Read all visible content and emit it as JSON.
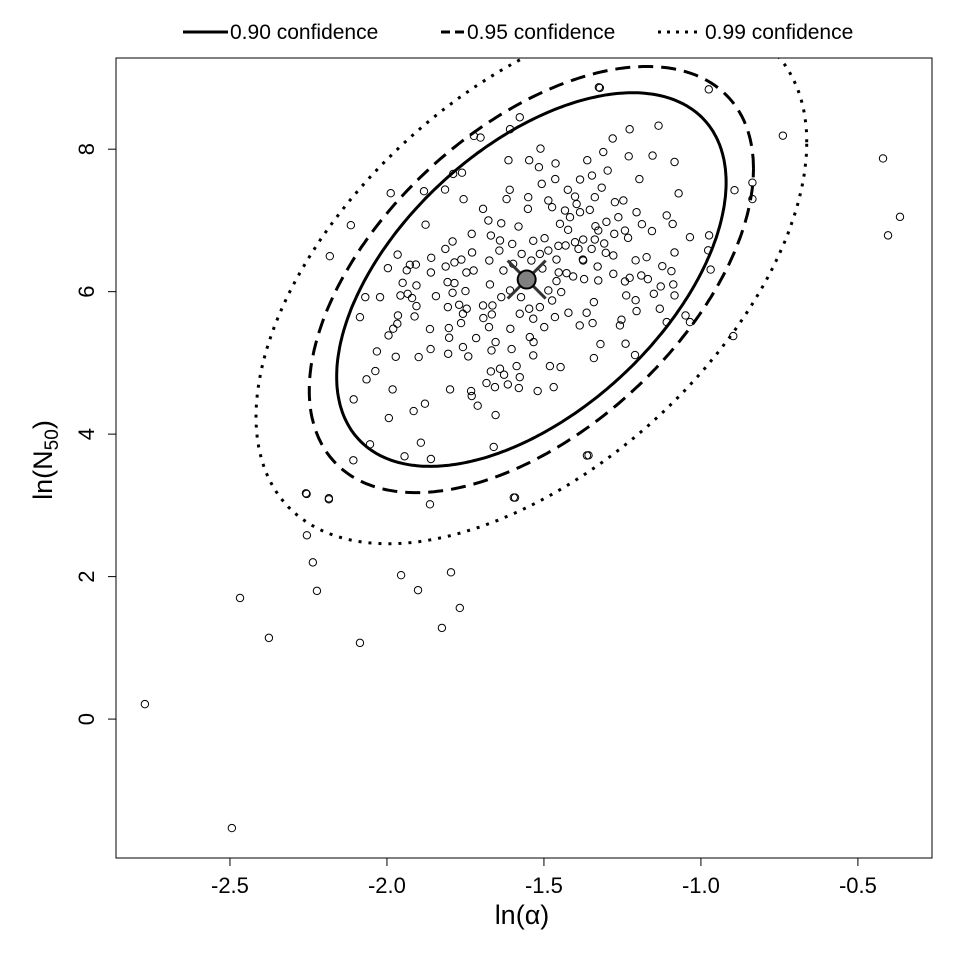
{
  "chart_data": {
    "type": "scatter",
    "xlabel": "ln(α)",
    "ylabel_main": "ln(N",
    "ylabel_sub": "50",
    "ylabel_close": ")",
    "xlim": [
      -2.863,
      -0.264
    ],
    "ylim": [
      -1.95,
      9.28
    ],
    "xticks": [
      -2.5,
      -2.0,
      -1.5,
      -1.0,
      -0.5
    ],
    "xtick_labels": [
      "-2.5",
      "-2.0",
      "-1.5",
      "-1.0",
      "-0.5"
    ],
    "yticks": [
      0,
      2,
      4,
      6,
      8
    ],
    "ytick_labels": [
      "0",
      "2",
      "4",
      "6",
      "8"
    ],
    "grid": false,
    "legend_position": "top",
    "legend": [
      {
        "label": "0.90 confidence",
        "style": "solid"
      },
      {
        "label": "0.95 confidence",
        "style": "dashed"
      },
      {
        "label": "0.99 confidence",
        "style": "dotted"
      }
    ],
    "estimate": {
      "x": -1.555,
      "y": 6.17,
      "color": "#808080"
    },
    "ellipses": {
      "center": [
        -1.54,
        6.17
      ],
      "sd_x": 0.289,
      "sd_y": 1.222,
      "correlation": 0.52,
      "levels": [
        0.9,
        0.95,
        0.99
      ]
    },
    "points": [
      [
        -2.771,
        0.21
      ],
      [
        -2.494,
        -1.53
      ],
      [
        -2.468,
        1.7
      ],
      [
        -2.376,
        1.14
      ],
      [
        -2.086,
        1.07
      ],
      [
        -2.223,
        1.8
      ],
      [
        -2.236,
        2.2
      ],
      [
        -2.255,
        2.58
      ],
      [
        -2.258,
        3.17
      ],
      [
        -2.185,
        3.1
      ],
      [
        -1.955,
        2.02
      ],
      [
        -1.901,
        1.81
      ],
      [
        -1.796,
        2.06
      ],
      [
        -1.768,
        1.56
      ],
      [
        -1.825,
        1.28
      ],
      [
        -1.596,
        3.11
      ],
      [
        -1.363,
        3.7
      ],
      [
        -0.42,
        7.87
      ],
      [
        -0.404,
        6.79
      ],
      [
        -0.366,
        7.05
      ],
      [
        -0.739,
        8.19
      ],
      [
        -0.975,
        8.84
      ],
      [
        -1.322,
        8.86
      ],
      [
        -1.325,
        8.869
      ],
      [
        -1.577,
        8.448
      ],
      [
        -1.608,
        8.28
      ],
      [
        -1.723,
        8.186
      ],
      [
        -1.702,
        8.163
      ],
      [
        -1.227,
        8.28
      ],
      [
        -1.135,
        8.33
      ],
      [
        -1.281,
        8.15
      ],
      [
        -1.511,
        8.008
      ],
      [
        -1.613,
        7.845
      ],
      [
        -1.547,
        7.845
      ],
      [
        -1.463,
        7.8
      ],
      [
        -1.362,
        7.845
      ],
      [
        -1.311,
        7.96
      ],
      [
        -1.23,
        7.9
      ],
      [
        -1.154,
        7.91
      ],
      [
        -1.084,
        7.82
      ],
      [
        -1.516,
        7.747
      ],
      [
        -1.297,
        7.7
      ],
      [
        -1.196,
        7.58
      ],
      [
        -1.347,
        7.63
      ],
      [
        -1.385,
        7.574
      ],
      [
        -1.464,
        7.58
      ],
      [
        -1.507,
        7.513
      ],
      [
        -1.789,
        7.653
      ],
      [
        -1.761,
        7.67
      ],
      [
        -1.988,
        7.382
      ],
      [
        -1.882,
        7.41
      ],
      [
        -1.815,
        7.433
      ],
      [
        -1.609,
        7.43
      ],
      [
        -1.424,
        7.43
      ],
      [
        -1.316,
        7.46
      ],
      [
        -1.071,
        7.38
      ],
      [
        -0.893,
        7.424
      ],
      [
        -0.836,
        7.53
      ],
      [
        -0.836,
        7.3
      ],
      [
        -2.115,
        6.933
      ],
      [
        -1.877,
        6.94
      ],
      [
        -1.756,
        7.298
      ],
      [
        -1.619,
        7.3
      ],
      [
        -1.55,
        7.326
      ],
      [
        -1.486,
        7.28
      ],
      [
        -1.396,
        7.23
      ],
      [
        -1.274,
        7.256
      ],
      [
        -1.247,
        7.28
      ],
      [
        -1.205,
        7.115
      ],
      [
        -1.109,
        7.07
      ],
      [
        -1.09,
        6.95
      ],
      [
        -1.188,
        6.947
      ],
      [
        -1.156,
        6.85
      ],
      [
        -1.035,
        6.765
      ],
      [
        -0.974,
        6.79
      ],
      [
        -0.977,
        6.58
      ],
      [
        -1.084,
        6.55
      ],
      [
        -1.173,
        6.484
      ],
      [
        -1.208,
        6.44
      ],
      [
        -1.123,
        6.358
      ],
      [
        -1.094,
        6.288
      ],
      [
        -0.969,
        6.31
      ],
      [
        -2.182,
        6.498
      ],
      [
        -1.966,
        6.52
      ],
      [
        -1.997,
        6.33
      ],
      [
        -1.927,
        6.377
      ],
      [
        -1.908,
        6.38
      ],
      [
        -1.937,
        6.3
      ],
      [
        -1.859,
        6.475
      ],
      [
        -1.814,
        6.6
      ],
      [
        -1.791,
        6.704
      ],
      [
        -1.813,
        6.353
      ],
      [
        -1.785,
        6.41
      ],
      [
        -1.763,
        6.45
      ],
      [
        -1.729,
        6.55
      ],
      [
        -1.694,
        7.162
      ],
      [
        -1.677,
        6.999
      ],
      [
        -1.636,
        6.96
      ],
      [
        -1.581,
        6.914
      ],
      [
        -1.551,
        7.162
      ],
      [
        -1.669,
        6.788
      ],
      [
        -1.64,
        6.718
      ],
      [
        -1.601,
        6.67
      ],
      [
        -1.534,
        6.714
      ],
      [
        -1.498,
        6.75
      ],
      [
        -1.454,
        6.643
      ],
      [
        -1.431,
        6.648
      ],
      [
        -1.401,
        6.694
      ],
      [
        -1.375,
        6.732
      ],
      [
        -1.338,
        6.732
      ],
      [
        -1.308,
        6.676
      ],
      [
        -1.242,
        6.858
      ],
      [
        -1.232,
        6.755
      ],
      [
        -1.279,
        6.508
      ],
      [
        -1.303,
        6.545
      ],
      [
        -1.376,
        6.451
      ],
      [
        -1.329,
        6.353
      ],
      [
        -1.327,
        6.157
      ],
      [
        -1.372,
        6.176
      ],
      [
        -1.279,
        6.25
      ],
      [
        -1.242,
        6.143
      ],
      [
        -1.227,
        6.194
      ],
      [
        -1.19,
        6.227
      ],
      [
        -1.169,
        6.176
      ],
      [
        -1.088,
        6.101
      ],
      [
        -1.15,
        5.97
      ],
      [
        -1.128,
        6.073
      ],
      [
        -1.084,
        5.947
      ],
      [
        -1.238,
        5.947
      ],
      [
        -1.208,
        5.88
      ],
      [
        -1.205,
        5.727
      ],
      [
        -1.131,
        5.76
      ],
      [
        -1.109,
        5.573
      ],
      [
        -1.035,
        5.573
      ],
      [
        -1.049,
        5.666
      ],
      [
        -0.897,
        5.376
      ],
      [
        -1.341,
        5.853
      ],
      [
        -1.345,
        5.559
      ],
      [
        -1.386,
        5.526
      ],
      [
        -1.364,
        5.704
      ],
      [
        -1.253,
        5.606
      ],
      [
        -1.258,
        5.526
      ],
      [
        -1.32,
        5.264
      ],
      [
        -1.24,
        5.269
      ],
      [
        -1.21,
        5.11
      ],
      [
        -1.341,
        5.068
      ],
      [
        -1.445,
        5.994
      ],
      [
        -1.407,
        6.213
      ],
      [
        -1.46,
        6.148
      ],
      [
        -1.486,
        6.017
      ],
      [
        -1.474,
        5.876
      ],
      [
        -1.465,
        5.643
      ],
      [
        -1.422,
        5.704
      ],
      [
        -1.513,
        5.783
      ],
      [
        -1.534,
        5.62
      ],
      [
        -1.499,
        5.502
      ],
      [
        -1.534,
        5.105
      ],
      [
        -1.481,
        4.955
      ],
      [
        -1.447,
        4.941
      ],
      [
        -1.469,
        4.66
      ],
      [
        -1.52,
        4.605
      ],
      [
        -1.58,
        4.647
      ],
      [
        -1.577,
        4.8
      ],
      [
        -1.587,
        4.955
      ],
      [
        -1.627,
        4.834
      ],
      [
        -1.669,
        4.88
      ],
      [
        -1.64,
        4.918
      ],
      [
        -1.683,
        4.717
      ],
      [
        -1.656,
        4.66
      ],
      [
        -1.615,
        4.698
      ],
      [
        -1.654,
        4.268
      ],
      [
        -1.711,
        4.399
      ],
      [
        -1.732,
        4.605
      ],
      [
        -1.73,
        4.535
      ],
      [
        -1.799,
        4.628
      ],
      [
        -1.879,
        4.427
      ],
      [
        -1.915,
        4.324
      ],
      [
        -1.994,
        4.226
      ],
      [
        -1.982,
        4.628
      ],
      [
        -2.037,
        4.885
      ],
      [
        -2.065,
        4.769
      ],
      [
        -2.106,
        4.488
      ],
      [
        -2.054,
        3.857
      ],
      [
        -2.107,
        3.633
      ],
      [
        -1.892,
        3.88
      ],
      [
        -1.944,
        3.689
      ],
      [
        -1.86,
        3.651
      ],
      [
        -1.66,
        3.82
      ],
      [
        -1.358,
        3.703
      ],
      [
        -1.592,
        3.109
      ],
      [
        -1.863,
        3.015
      ],
      [
        -2.185,
        3.085
      ],
      [
        -2.256,
        3.16
      ],
      [
        -2.032,
        5.161
      ],
      [
        -1.972,
        5.086
      ],
      [
        -1.899,
        5.082
      ],
      [
        -1.861,
        5.194
      ],
      [
        -1.805,
        5.128
      ],
      [
        -1.758,
        5.222
      ],
      [
        -1.741,
        5.091
      ],
      [
        -1.667,
        5.175
      ],
      [
        -1.603,
        5.194
      ],
      [
        -1.654,
        5.292
      ],
      [
        -1.607,
        5.479
      ],
      [
        -1.675,
        5.502
      ],
      [
        -1.716,
        5.348
      ],
      [
        -1.802,
        5.353
      ],
      [
        -1.863,
        5.475
      ],
      [
        -1.803,
        5.489
      ],
      [
        -1.764,
        5.559
      ],
      [
        -1.758,
        5.69
      ],
      [
        -1.693,
        5.629
      ],
      [
        -1.666,
        5.68
      ],
      [
        -1.746,
        5.76
      ],
      [
        -1.77,
        5.816
      ],
      [
        -1.806,
        5.783
      ],
      [
        -1.694,
        5.806
      ],
      [
        -1.664,
        5.806
      ],
      [
        -1.636,
        5.923
      ],
      [
        -1.608,
        6.017
      ],
      [
        -1.573,
        5.923
      ],
      [
        -1.547,
        5.76
      ],
      [
        -1.577,
        5.69
      ],
      [
        -1.545,
        5.362
      ],
      [
        -1.533,
        5.292
      ],
      [
        -1.995,
        5.386
      ],
      [
        -1.965,
        5.666
      ],
      [
        -1.967,
        5.55
      ],
      [
        -1.98,
        5.48
      ],
      [
        -1.912,
        5.652
      ],
      [
        -1.906,
        5.797
      ],
      [
        -1.957,
        5.946
      ],
      [
        -1.934,
        5.97
      ],
      [
        -1.92,
        5.91
      ],
      [
        -1.906,
        6.087
      ],
      [
        -1.95,
        6.124
      ],
      [
        -2.022,
        5.923
      ],
      [
        -2.069,
        5.923
      ],
      [
        -2.086,
        5.642
      ],
      [
        -1.844,
        5.937
      ],
      [
        -1.791,
        5.984
      ],
      [
        -1.75,
        6.008
      ],
      [
        -1.785,
        6.12
      ],
      [
        -1.807,
        6.134
      ],
      [
        -1.86,
        6.269
      ],
      [
        -1.747,
        6.269
      ],
      [
        -1.724,
        6.297
      ],
      [
        -1.672,
        6.101
      ],
      [
        -1.629,
        6.297
      ],
      [
        -1.598,
        6.391
      ],
      [
        -1.571,
        6.53
      ],
      [
        -1.54,
        6.437
      ],
      [
        -1.513,
        6.53
      ],
      [
        -1.486,
        6.577
      ],
      [
        -1.46,
        6.451
      ],
      [
        -1.505,
        6.325
      ],
      [
        -1.453,
        6.269
      ],
      [
        -1.428,
        6.26
      ],
      [
        -1.375,
        6.437
      ],
      [
        -1.39,
        6.6
      ],
      [
        -1.348,
        6.6
      ],
      [
        -1.674,
        6.437
      ],
      [
        -1.642,
        6.577
      ],
      [
        -1.73,
        6.811
      ],
      [
        -1.423,
        6.868
      ],
      [
        -1.449,
        6.952
      ],
      [
        -1.417,
        7.045
      ],
      [
        -1.433,
        7.139
      ],
      [
        -1.385,
        7.115
      ],
      [
        -1.354,
        7.148
      ],
      [
        -1.338,
        7.326
      ],
      [
        -1.401,
        7.335
      ],
      [
        -1.474,
        7.186
      ],
      [
        -1.336,
        6.919
      ],
      [
        -1.263,
        7.045
      ],
      [
        -1.301,
        6.98
      ],
      [
        -1.327,
        6.858
      ],
      [
        -1.276,
        6.811
      ]
    ]
  }
}
